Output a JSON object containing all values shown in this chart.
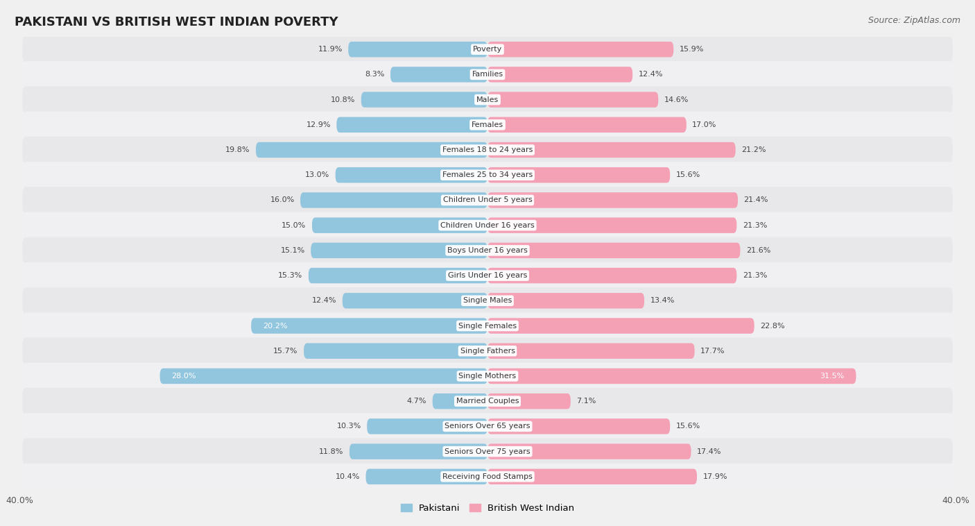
{
  "title": "PAKISTANI VS BRITISH WEST INDIAN POVERTY",
  "source": "Source: ZipAtlas.com",
  "categories": [
    "Poverty",
    "Families",
    "Males",
    "Females",
    "Females 18 to 24 years",
    "Females 25 to 34 years",
    "Children Under 5 years",
    "Children Under 16 years",
    "Boys Under 16 years",
    "Girls Under 16 years",
    "Single Males",
    "Single Females",
    "Single Fathers",
    "Single Mothers",
    "Married Couples",
    "Seniors Over 65 years",
    "Seniors Over 75 years",
    "Receiving Food Stamps"
  ],
  "pakistani": [
    11.9,
    8.3,
    10.8,
    12.9,
    19.8,
    13.0,
    16.0,
    15.0,
    15.1,
    15.3,
    12.4,
    20.2,
    15.7,
    28.0,
    4.7,
    10.3,
    11.8,
    10.4
  ],
  "british_west_indian": [
    15.9,
    12.4,
    14.6,
    17.0,
    21.2,
    15.6,
    21.4,
    21.3,
    21.6,
    21.3,
    13.4,
    22.8,
    17.7,
    31.5,
    7.1,
    15.6,
    17.4,
    17.9
  ],
  "pakistani_color": "#92c5de",
  "british_west_indian_color": "#f4a0b5",
  "background_color": "#f0f0f0",
  "bar_bg_color": "#e8e8e8",
  "bar_bg_color2": "#f8f8f8",
  "axis_limit": 40.0,
  "title_fontsize": 13,
  "source_fontsize": 9,
  "label_fontsize": 8,
  "value_fontsize": 8
}
